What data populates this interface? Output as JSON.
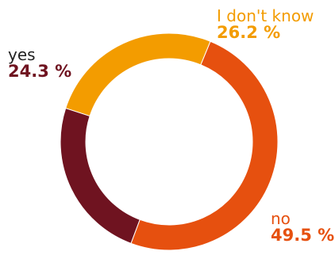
{
  "chart_data": {
    "type": "pie",
    "variant": "donut",
    "title": "",
    "slices": [
      {
        "label": "I don't know",
        "value": 26.2,
        "display": "26.2 %",
        "color": "#f39c00"
      },
      {
        "label": "no",
        "value": 49.5,
        "display": "49.5 %",
        "color": "#e6500f"
      },
      {
        "label": "yes",
        "value": 24.3,
        "display": "24.3 %",
        "color": "#6f1320"
      }
    ],
    "legend": "none",
    "label_placement": "outside"
  }
}
